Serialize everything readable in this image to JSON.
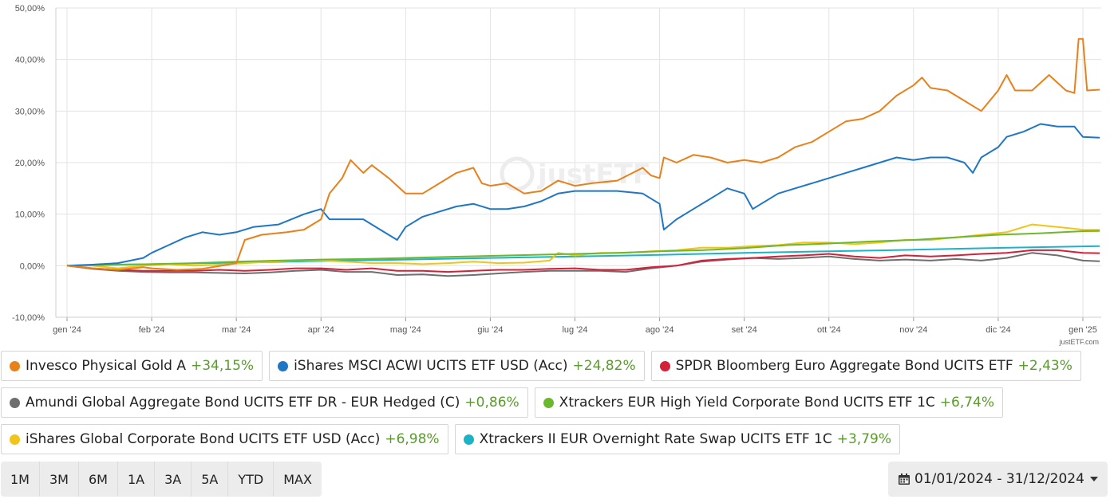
{
  "chart_data": {
    "type": "line",
    "x_ticks": [
      "gen '24",
      "feb '24",
      "mar '24",
      "apr '24",
      "mag '24",
      "giu '24",
      "lug '24",
      "ago '24",
      "set '24",
      "ott '24",
      "nov '24",
      "dic '24",
      "gen '25"
    ],
    "y_ticks": [
      "50,00%",
      "40,00%",
      "30,00%",
      "20,00%",
      "10,00%",
      "0,00%",
      "-10,00%"
    ],
    "ylim": [
      -10,
      50
    ],
    "xlim": [
      0,
      12
    ],
    "grid": true,
    "series": [
      {
        "name": "Invesco Physical Gold A",
        "color": "#e8811a",
        "points": [
          [
            0,
            0
          ],
          [
            0.3,
            -0.5
          ],
          [
            0.6,
            -0.8
          ],
          [
            0.9,
            -0.3
          ],
          [
            1.0,
            -0.5
          ],
          [
            1.3,
            -0.8
          ],
          [
            1.6,
            -0.6
          ],
          [
            1.9,
            0.2
          ],
          [
            2.0,
            0.5
          ],
          [
            2.1,
            5
          ],
          [
            2.3,
            6
          ],
          [
            2.6,
            6.5
          ],
          [
            2.8,
            7
          ],
          [
            3.0,
            9
          ],
          [
            3.1,
            14
          ],
          [
            3.25,
            17
          ],
          [
            3.35,
            20.5
          ],
          [
            3.5,
            18
          ],
          [
            3.6,
            19.5
          ],
          [
            3.8,
            17
          ],
          [
            4.0,
            14
          ],
          [
            4.2,
            14
          ],
          [
            4.4,
            16
          ],
          [
            4.6,
            18
          ],
          [
            4.8,
            19
          ],
          [
            4.9,
            16
          ],
          [
            5.0,
            15.5
          ],
          [
            5.2,
            16
          ],
          [
            5.4,
            14
          ],
          [
            5.6,
            14.5
          ],
          [
            5.8,
            16.5
          ],
          [
            6.0,
            15.5
          ],
          [
            6.2,
            16
          ],
          [
            6.5,
            16.5
          ],
          [
            6.8,
            19
          ],
          [
            6.9,
            17.5
          ],
          [
            7.0,
            17
          ],
          [
            7.05,
            21
          ],
          [
            7.2,
            20
          ],
          [
            7.4,
            21.5
          ],
          [
            7.6,
            21
          ],
          [
            7.8,
            20
          ],
          [
            8.0,
            20.5
          ],
          [
            8.2,
            20
          ],
          [
            8.4,
            21
          ],
          [
            8.6,
            23
          ],
          [
            8.8,
            24
          ],
          [
            9.0,
            26
          ],
          [
            9.2,
            28
          ],
          [
            9.4,
            28.5
          ],
          [
            9.6,
            30
          ],
          [
            9.8,
            33
          ],
          [
            10.0,
            35
          ],
          [
            10.1,
            36.5
          ],
          [
            10.2,
            34.5
          ],
          [
            10.4,
            34
          ],
          [
            10.6,
            32
          ],
          [
            10.8,
            30
          ],
          [
            11.0,
            34
          ],
          [
            11.1,
            37
          ],
          [
            11.2,
            34
          ],
          [
            11.4,
            34
          ],
          [
            11.6,
            37
          ],
          [
            11.8,
            34
          ],
          [
            11.9,
            33.5
          ],
          [
            11.95,
            44
          ],
          [
            12.0,
            44
          ],
          [
            12.05,
            34
          ],
          [
            12.2,
            34.15
          ]
        ]
      },
      {
        "name": "iShares MSCI ACWI UCITS ETF USD (Acc)",
        "color": "#1f77c4",
        "points": [
          [
            0,
            0
          ],
          [
            0.3,
            0.2
          ],
          [
            0.6,
            0.5
          ],
          [
            0.9,
            1.5
          ],
          [
            1.0,
            2.5
          ],
          [
            1.2,
            4
          ],
          [
            1.4,
            5.5
          ],
          [
            1.6,
            6.5
          ],
          [
            1.8,
            6
          ],
          [
            2.0,
            6.5
          ],
          [
            2.2,
            7.5
          ],
          [
            2.5,
            8
          ],
          [
            2.8,
            10
          ],
          [
            3.0,
            11
          ],
          [
            3.1,
            9
          ],
          [
            3.3,
            9
          ],
          [
            3.5,
            9
          ],
          [
            3.7,
            7
          ],
          [
            3.9,
            5
          ],
          [
            4.0,
            7.5
          ],
          [
            4.2,
            9.5
          ],
          [
            4.4,
            10.5
          ],
          [
            4.6,
            11.5
          ],
          [
            4.8,
            12
          ],
          [
            5.0,
            11
          ],
          [
            5.2,
            11
          ],
          [
            5.4,
            11.5
          ],
          [
            5.6,
            12.5
          ],
          [
            5.8,
            14
          ],
          [
            6.0,
            14.5
          ],
          [
            6.2,
            14.5
          ],
          [
            6.5,
            14.5
          ],
          [
            6.8,
            14
          ],
          [
            7.0,
            12
          ],
          [
            7.05,
            7
          ],
          [
            7.2,
            9
          ],
          [
            7.4,
            11
          ],
          [
            7.6,
            13
          ],
          [
            7.8,
            15
          ],
          [
            8.0,
            14
          ],
          [
            8.1,
            11
          ],
          [
            8.2,
            12
          ],
          [
            8.4,
            14
          ],
          [
            8.6,
            15
          ],
          [
            8.8,
            16
          ],
          [
            9.0,
            17
          ],
          [
            9.2,
            18
          ],
          [
            9.4,
            19
          ],
          [
            9.6,
            20
          ],
          [
            9.8,
            21
          ],
          [
            10.0,
            20.5
          ],
          [
            10.2,
            21
          ],
          [
            10.4,
            21
          ],
          [
            10.6,
            20
          ],
          [
            10.7,
            18
          ],
          [
            10.8,
            21
          ],
          [
            11.0,
            23
          ],
          [
            11.1,
            25
          ],
          [
            11.3,
            26
          ],
          [
            11.5,
            27.5
          ],
          [
            11.7,
            27
          ],
          [
            11.9,
            27
          ],
          [
            12.0,
            25
          ],
          [
            12.2,
            24.82
          ]
        ]
      },
      {
        "name": "SPDR Bloomberg Euro Aggregate Bond UCITS ETF",
        "color": "#d42039",
        "points": [
          [
            0,
            0
          ],
          [
            0.3,
            -0.5
          ],
          [
            0.6,
            -0.8
          ],
          [
            0.9,
            -1
          ],
          [
            1.2,
            -1
          ],
          [
            1.5,
            -1
          ],
          [
            1.8,
            -0.8
          ],
          [
            2.1,
            -1
          ],
          [
            2.4,
            -0.8
          ],
          [
            2.7,
            -0.5
          ],
          [
            3.0,
            -0.5
          ],
          [
            3.3,
            -0.8
          ],
          [
            3.6,
            -0.5
          ],
          [
            3.9,
            -1
          ],
          [
            4.2,
            -1
          ],
          [
            4.5,
            -1.2
          ],
          [
            4.8,
            -1
          ],
          [
            5.1,
            -0.8
          ],
          [
            5.4,
            -0.8
          ],
          [
            5.7,
            -0.6
          ],
          [
            6.0,
            -0.5
          ],
          [
            6.3,
            -0.8
          ],
          [
            6.6,
            -0.8
          ],
          [
            6.9,
            -0.3
          ],
          [
            7.2,
            0
          ],
          [
            7.5,
            1
          ],
          [
            7.8,
            1.3
          ],
          [
            8.1,
            1.5
          ],
          [
            8.4,
            1.8
          ],
          [
            8.7,
            2
          ],
          [
            9.0,
            2.3
          ],
          [
            9.3,
            1.8
          ],
          [
            9.6,
            1.5
          ],
          [
            9.9,
            2
          ],
          [
            10.2,
            1.8
          ],
          [
            10.5,
            2
          ],
          [
            10.8,
            2.3
          ],
          [
            11.1,
            2.5
          ],
          [
            11.4,
            3
          ],
          [
            11.7,
            3
          ],
          [
            12.0,
            2.5
          ],
          [
            12.2,
            2.43
          ]
        ]
      },
      {
        "name": "Amundi Global Aggregate Bond UCITS ETF DR - EUR Hedged (C)",
        "color": "#6e6e6e",
        "points": [
          [
            0,
            0
          ],
          [
            0.3,
            -0.6
          ],
          [
            0.6,
            -1
          ],
          [
            0.9,
            -1.2
          ],
          [
            1.2,
            -1.3
          ],
          [
            1.5,
            -1.3
          ],
          [
            1.8,
            -1.4
          ],
          [
            2.1,
            -1.5
          ],
          [
            2.4,
            -1.3
          ],
          [
            2.7,
            -1
          ],
          [
            3.0,
            -0.8
          ],
          [
            3.3,
            -1.2
          ],
          [
            3.6,
            -1.2
          ],
          [
            3.9,
            -1.8
          ],
          [
            4.2,
            -1.7
          ],
          [
            4.5,
            -2
          ],
          [
            4.8,
            -1.8
          ],
          [
            5.1,
            -1.5
          ],
          [
            5.4,
            -1.2
          ],
          [
            5.7,
            -1
          ],
          [
            6.0,
            -1
          ],
          [
            6.3,
            -1
          ],
          [
            6.6,
            -1.2
          ],
          [
            6.9,
            -0.5
          ],
          [
            7.2,
            0
          ],
          [
            7.5,
            0.8
          ],
          [
            7.8,
            1.2
          ],
          [
            8.1,
            1.5
          ],
          [
            8.4,
            1.3
          ],
          [
            8.7,
            1.5
          ],
          [
            9.0,
            1.8
          ],
          [
            9.3,
            1.3
          ],
          [
            9.6,
            1
          ],
          [
            9.9,
            1.2
          ],
          [
            10.2,
            1
          ],
          [
            10.5,
            1.3
          ],
          [
            10.8,
            1
          ],
          [
            11.1,
            1.5
          ],
          [
            11.4,
            2.5
          ],
          [
            11.7,
            2
          ],
          [
            12.0,
            1
          ],
          [
            12.2,
            0.86
          ]
        ]
      },
      {
        "name": "Xtrackers EUR High Yield Corporate Bond UCITS ETF 1C",
        "color": "#6cb82c",
        "points": [
          [
            0,
            0
          ],
          [
            0.5,
            0.2
          ],
          [
            1.0,
            0.3
          ],
          [
            1.5,
            0.5
          ],
          [
            2.0,
            0.8
          ],
          [
            2.5,
            1
          ],
          [
            3.0,
            1.2
          ],
          [
            3.5,
            1.3
          ],
          [
            4.0,
            1.5
          ],
          [
            4.5,
            1.7
          ],
          [
            5.0,
            1.9
          ],
          [
            5.5,
            2.1
          ],
          [
            6.0,
            2.3
          ],
          [
            6.5,
            2.5
          ],
          [
            7.0,
            2.8
          ],
          [
            7.5,
            3
          ],
          [
            8.0,
            3.4
          ],
          [
            8.5,
            4
          ],
          [
            9.0,
            4.3
          ],
          [
            9.5,
            4.7
          ],
          [
            10.0,
            5
          ],
          [
            10.5,
            5.5
          ],
          [
            11.0,
            6
          ],
          [
            11.5,
            6.3
          ],
          [
            12.0,
            6.7
          ],
          [
            12.2,
            6.74
          ]
        ]
      },
      {
        "name": "iShares Global Corporate Bond UCITS ETF USD (Acc)",
        "color": "#f0c419",
        "points": [
          [
            0,
            0
          ],
          [
            0.3,
            0
          ],
          [
            0.6,
            -0.5
          ],
          [
            0.9,
            0
          ],
          [
            1.2,
            0.3
          ],
          [
            1.5,
            0
          ],
          [
            1.8,
            0.2
          ],
          [
            2.1,
            0.5
          ],
          [
            2.4,
            0.8
          ],
          [
            2.7,
            1
          ],
          [
            3.0,
            1
          ],
          [
            3.3,
            0.8
          ],
          [
            3.6,
            0.5
          ],
          [
            3.9,
            0.5
          ],
          [
            4.2,
            0.3
          ],
          [
            4.5,
            0.5
          ],
          [
            4.8,
            0.8
          ],
          [
            5.1,
            0.5
          ],
          [
            5.4,
            0.6
          ],
          [
            5.7,
            1
          ],
          [
            5.8,
            2.5
          ],
          [
            6.0,
            2
          ],
          [
            6.3,
            2.5
          ],
          [
            6.6,
            2.5
          ],
          [
            6.9,
            2.8
          ],
          [
            7.2,
            3
          ],
          [
            7.5,
            3.5
          ],
          [
            7.8,
            3.5
          ],
          [
            8.1,
            3.8
          ],
          [
            8.4,
            4
          ],
          [
            8.7,
            4.5
          ],
          [
            9.0,
            4.5
          ],
          [
            9.3,
            4.2
          ],
          [
            9.6,
            4.5
          ],
          [
            9.9,
            5
          ],
          [
            10.2,
            5
          ],
          [
            10.5,
            5.5
          ],
          [
            10.8,
            6
          ],
          [
            11.1,
            6.5
          ],
          [
            11.4,
            8
          ],
          [
            11.7,
            7.5
          ],
          [
            12.0,
            7
          ],
          [
            12.2,
            6.98
          ]
        ]
      },
      {
        "name": "Xtrackers II EUR Overnight Rate Swap UCITS ETF 1C",
        "color": "#1db3c6",
        "points": [
          [
            0,
            0
          ],
          [
            1,
            0.3
          ],
          [
            2,
            0.6
          ],
          [
            3,
            0.9
          ],
          [
            4,
            1.2
          ],
          [
            5,
            1.5
          ],
          [
            6,
            1.8
          ],
          [
            7,
            2.1
          ],
          [
            8,
            2.5
          ],
          [
            9,
            2.8
          ],
          [
            10,
            3.1
          ],
          [
            11,
            3.45
          ],
          [
            12,
            3.75
          ],
          [
            12.2,
            3.79
          ]
        ]
      }
    ]
  },
  "watermark": "justETF",
  "credit": "justETF.com",
  "legend": [
    {
      "name": "Invesco Physical Gold A",
      "change": "+34,15%",
      "color": "#e8811a"
    },
    {
      "name": "iShares MSCI ACWI UCITS ETF USD (Acc)",
      "change": "+24,82%",
      "color": "#1f77c4"
    },
    {
      "name": "SPDR Bloomberg Euro Aggregate Bond UCITS ETF",
      "change": "+2,43%",
      "color": "#d42039"
    },
    {
      "name": "Amundi Global Aggregate Bond UCITS ETF DR - EUR Hedged (C)",
      "change": "+0,86%",
      "color": "#6e6e6e"
    },
    {
      "name": "Xtrackers EUR High Yield Corporate Bond UCITS ETF 1C",
      "change": "+6,74%",
      "color": "#6cb82c"
    },
    {
      "name": "iShares Global Corporate Bond UCITS ETF USD (Acc)",
      "change": "+6,98%",
      "color": "#f0c419"
    },
    {
      "name": "Xtrackers II EUR Overnight Rate Swap UCITS ETF 1C",
      "change": "+3,79%",
      "color": "#1db3c6"
    }
  ],
  "range_buttons": [
    "1M",
    "3M",
    "6M",
    "1A",
    "3A",
    "5A",
    "YTD",
    "MAX"
  ],
  "date_range": "01/01/2024 - 31/12/2024"
}
